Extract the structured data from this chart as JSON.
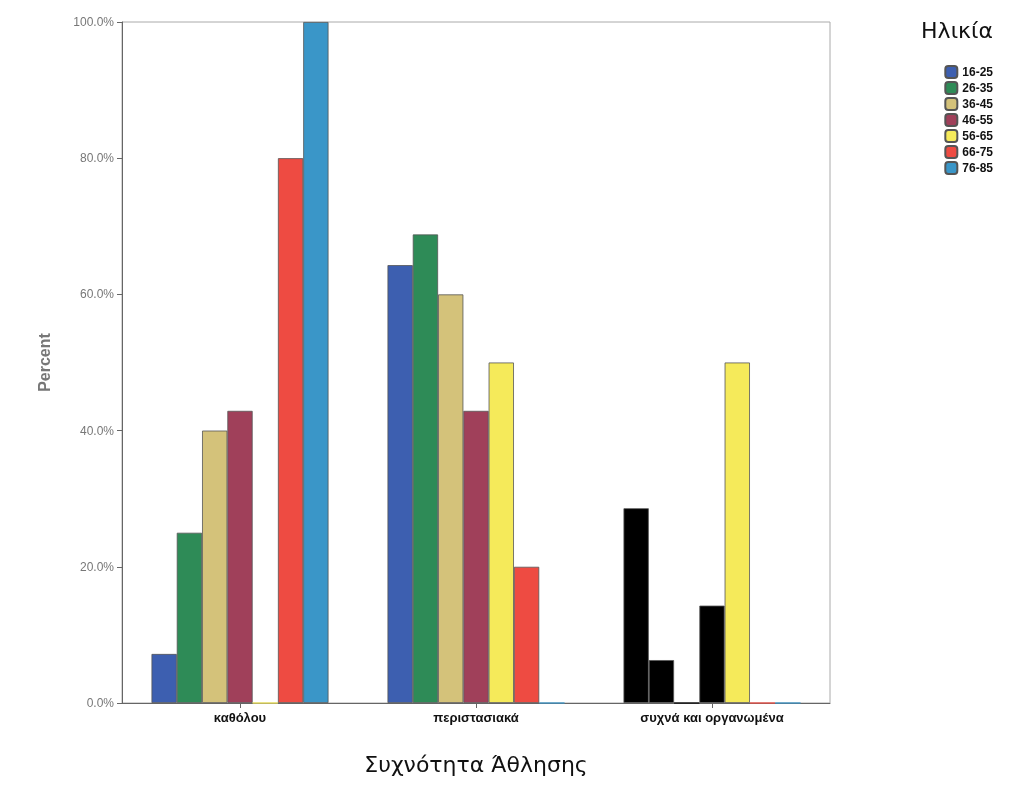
{
  "chart_data": {
    "type": "bar",
    "xlabel": "Συχνότητα Άθλησης",
    "ylabel": "Percent",
    "legend_title": "Ηλικία",
    "legend": "top right",
    "grid": false,
    "categories": [
      "καθόλου",
      "περιστασιακά",
      "συχνά και οργανωμένα"
    ],
    "ylim": [
      0,
      100
    ],
    "yticks": [
      {
        "value": 0,
        "label": "0.0%"
      },
      {
        "value": 20,
        "label": "20.0%"
      },
      {
        "value": 40,
        "label": "40.0%"
      },
      {
        "value": 60,
        "label": "60.0%"
      },
      {
        "value": 80,
        "label": "80.0%"
      },
      {
        "value": 100,
        "label": "100.0%"
      }
    ],
    "series": [
      {
        "name": "16-25",
        "color": "#3d5fb0",
        "colors": [
          "#3d5fb0",
          "#3d5fb0",
          "#000000"
        ],
        "values": [
          7.2,
          64.3,
          28.6
        ]
      },
      {
        "name": "26-35",
        "color": "#2e8b57",
        "colors": [
          "#2e8b57",
          "#2e8b57",
          "#000000"
        ],
        "values": [
          25,
          68.8,
          6.3
        ]
      },
      {
        "name": "36-45",
        "color": "#d4c27a",
        "colors": [
          "#d4c27a",
          "#d4c27a",
          "#000000"
        ],
        "values": [
          40,
          60,
          0
        ]
      },
      {
        "name": "46-55",
        "color": "#a0405a",
        "colors": [
          "#a0405a",
          "#a0405a",
          "#000000"
        ],
        "values": [
          42.9,
          42.9,
          14.3
        ]
      },
      {
        "name": "56-65",
        "color": "#f5ea5a",
        "colors": [
          "#f5ea5a",
          "#f5ea5a",
          "#f5ea5a"
        ],
        "values": [
          0,
          50,
          50
        ]
      },
      {
        "name": "66-75",
        "color": "#ee4b42",
        "colors": [
          "#ee4b42",
          "#ee4b42",
          "#ee4b42"
        ],
        "values": [
          80,
          20,
          0
        ]
      },
      {
        "name": "76-85",
        "color": "#3a96c8",
        "colors": [
          "#3a96c8",
          "#3a96c8",
          "#3a96c8"
        ],
        "values": [
          100,
          0,
          0
        ]
      }
    ]
  }
}
